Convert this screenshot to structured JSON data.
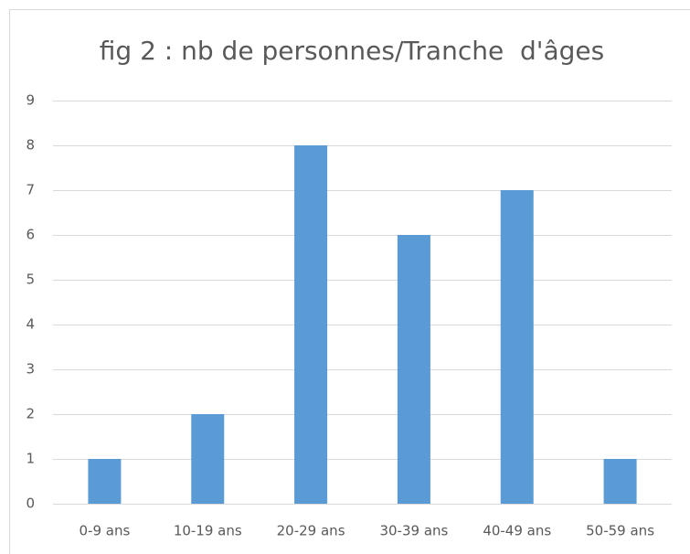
{
  "chart_data": {
    "type": "bar",
    "title": "fig 2 : nb de personnes/Tranche  d'âges",
    "categories": [
      "0-9 ans",
      "10-19 ans",
      "20-29 ans",
      "30-39 ans",
      "40-49 ans",
      "50-59 ans"
    ],
    "values": [
      1,
      2,
      8,
      6,
      7,
      1
    ],
    "color": "#5b9bd5",
    "ylim": [
      0,
      9
    ],
    "yticks": [
      0,
      1,
      2,
      3,
      4,
      5,
      6,
      7,
      8,
      9
    ],
    "grid": true
  }
}
